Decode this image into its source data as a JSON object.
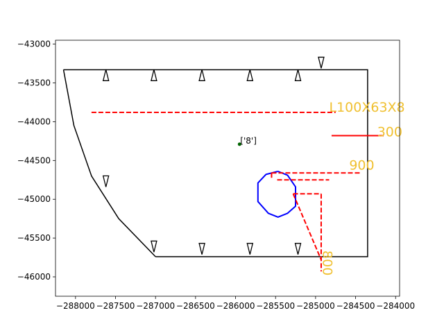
{
  "chart_data": {
    "type": "diagram",
    "xlim": [
      -288250,
      -283950
    ],
    "ylim": [
      -46250,
      -42950
    ],
    "x_ticks": [
      {
        "value": -288000,
        "label": "−288000"
      },
      {
        "value": -287500,
        "label": "−287500"
      },
      {
        "value": -287000,
        "label": "−287000"
      },
      {
        "value": -286500,
        "label": "−286500"
      },
      {
        "value": -286000,
        "label": "−286000"
      },
      {
        "value": -285500,
        "label": "−285500"
      },
      {
        "value": -285000,
        "label": "−285000"
      },
      {
        "value": -284500,
        "label": "−284500"
      },
      {
        "value": -284000,
        "label": "−284000"
      }
    ],
    "y_ticks": [
      {
        "value": -43000,
        "label": "−43000"
      },
      {
        "value": -43500,
        "label": "−43500"
      },
      {
        "value": -44000,
        "label": "−44000"
      },
      {
        "value": -44500,
        "label": "−44500"
      },
      {
        "value": -45000,
        "label": "−45000"
      },
      {
        "value": -45500,
        "label": "−45500"
      },
      {
        "value": -46000,
        "label": "−46000"
      }
    ],
    "outline": {
      "color": "#000000",
      "straight": [
        [
          -288150,
          -43330
        ],
        [
          -284350,
          -43330
        ],
        [
          -284350,
          -45740
        ],
        [
          -287000,
          -45740
        ]
      ],
      "arc": [
        [
          -287000,
          -45740
        ],
        [
          -287460,
          -45250
        ],
        [
          -287800,
          -44700
        ],
        [
          -288020,
          -44050
        ],
        [
          -288150,
          -43330
        ]
      ]
    },
    "triangles": {
      "color": "#000000",
      "up": [
        [
          -287620,
          -43400
        ],
        [
          -287020,
          -43400
        ],
        [
          -286420,
          -43400
        ],
        [
          -285820,
          -43400
        ],
        [
          -285220,
          -43400
        ]
      ],
      "down": [
        [
          -284930,
          -43240
        ],
        [
          -287620,
          -44770
        ],
        [
          -287020,
          -45610
        ],
        [
          -286420,
          -45640
        ],
        [
          -285820,
          -45640
        ],
        [
          -285220,
          -45640
        ]
      ]
    },
    "opening": {
      "color": "#0000ff",
      "points": [
        [
          -285470,
          -44640
        ],
        [
          -285350,
          -44690
        ],
        [
          -285250,
          -44840
        ],
        [
          -285250,
          -45090
        ],
        [
          -285350,
          -45180
        ],
        [
          -285470,
          -45230
        ],
        [
          -285590,
          -45180
        ],
        [
          -285720,
          -45030
        ],
        [
          -285720,
          -44790
        ],
        [
          -285620,
          -44680
        ],
        [
          -285470,
          -44640
        ]
      ]
    },
    "red_lines": {
      "color": "#ff0000",
      "dashed": [
        [
          [
            -287800,
            -43880
          ],
          [
            -284750,
            -43880
          ]
        ],
        [
          [
            -285550,
            -44660
          ],
          [
            -284430,
            -44660
          ]
        ],
        [
          [
            -285550,
            -44660
          ],
          [
            -285550,
            -44740
          ]
        ],
        [
          [
            -285480,
            -44750
          ],
          [
            -284830,
            -44750
          ]
        ],
        [
          [
            -285280,
            -44930
          ],
          [
            -284930,
            -44930
          ]
        ],
        [
          [
            -284930,
            -44930
          ],
          [
            -284930,
            -45930
          ]
        ],
        [
          [
            -285280,
            -44930
          ],
          [
            -284930,
            -45780
          ]
        ]
      ],
      "solid": [
        [
          [
            -284800,
            -44180
          ],
          [
            -284150,
            -44180
          ]
        ]
      ]
    },
    "reference_point": {
      "x": -285950,
      "y": -44290,
      "color": "#006400",
      "label": "['8']"
    },
    "dimension_labels": [
      {
        "text": "L100X63X8",
        "x": -284830,
        "y": -43870,
        "rotate": 0
      },
      {
        "text": "300",
        "x": -284230,
        "y": -44190,
        "rotate": 0
      },
      {
        "text": "900",
        "x": -284580,
        "y": -44620,
        "rotate": 0
      },
      {
        "text": "800",
        "x": -284910,
        "y": -45660,
        "rotate": 90
      }
    ],
    "label_color": "#f0c030"
  }
}
